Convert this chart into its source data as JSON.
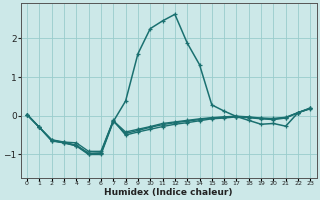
{
  "xlabel": "Humidex (Indice chaleur)",
  "ylabel": "",
  "background_color": "#cce8e8",
  "grid_color": "#99cccc",
  "line_color": "#1a7070",
  "xlim": [
    -0.5,
    23.5
  ],
  "ylim": [
    -1.6,
    2.9
  ],
  "yticks": [
    -1,
    0,
    1,
    2
  ],
  "xticks": [
    0,
    1,
    2,
    3,
    4,
    5,
    6,
    7,
    8,
    9,
    10,
    11,
    12,
    13,
    14,
    15,
    16,
    17,
    18,
    19,
    20,
    21,
    22,
    23
  ],
  "series": [
    [
      0.03,
      -0.3,
      -0.62,
      -0.68,
      -0.7,
      -0.92,
      -0.92,
      -0.12,
      -0.5,
      -0.42,
      -0.35,
      -0.28,
      -0.22,
      -0.18,
      -0.13,
      -0.08,
      -0.06,
      -0.03,
      -0.05,
      -0.08,
      -0.1,
      -0.06,
      0.08,
      0.18
    ],
    [
      0.03,
      -0.3,
      -0.65,
      -0.7,
      -0.78,
      -1.0,
      -1.0,
      -0.15,
      0.38,
      1.6,
      2.25,
      2.45,
      2.62,
      1.88,
      1.32,
      0.28,
      0.12,
      -0.02,
      -0.12,
      -0.22,
      -0.2,
      -0.27,
      0.08,
      0.2
    ],
    [
      0.03,
      -0.3,
      -0.63,
      -0.69,
      -0.76,
      -0.97,
      -0.96,
      -0.13,
      -0.42,
      -0.35,
      -0.28,
      -0.2,
      -0.16,
      -0.12,
      -0.08,
      -0.05,
      -0.03,
      -0.01,
      -0.03,
      -0.06,
      -0.07,
      -0.04,
      0.08,
      0.19
    ],
    [
      0.03,
      -0.3,
      -0.64,
      -0.7,
      -0.77,
      -0.98,
      -0.97,
      -0.14,
      -0.46,
      -0.38,
      -0.3,
      -0.23,
      -0.18,
      -0.14,
      -0.1,
      -0.06,
      -0.04,
      -0.02,
      -0.04,
      -0.07,
      -0.08,
      -0.05,
      0.08,
      0.19
    ]
  ]
}
